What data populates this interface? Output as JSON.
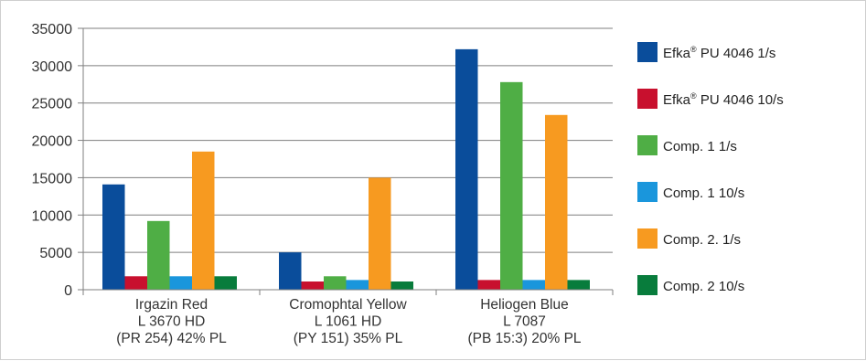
{
  "chart_data": {
    "type": "bar",
    "categories": [
      [
        "Irgazin Red",
        "L 3670 HD",
        "(PR 254) 42% PL"
      ],
      [
        "Cromophtal Yellow",
        "L 1061 HD",
        "(PY 151) 35% PL"
      ],
      [
        "Heliogen Blue",
        "L 7087",
        "(PB 15:3) 20% PL"
      ]
    ],
    "ylim": [
      0,
      35000
    ],
    "yticks": [
      "0",
      "5000",
      "10000",
      "15000",
      "20000",
      "25000",
      "30000",
      "35000"
    ],
    "grid": true,
    "legend_position": "right",
    "series": [
      {
        "name": "Efka® PU 4046 1/s",
        "name_main": "Efka",
        "name_sup": "®",
        "name_rest": " PU 4046 1/s",
        "color": "#0a4d9b",
        "values": [
          14100,
          5000,
          32200
        ]
      },
      {
        "name": "Efka® PU 4046 10/s",
        "name_main": "Efka",
        "name_sup": "®",
        "name_rest": " PU 4046 10/s",
        "color": "#c8102e",
        "values": [
          1800,
          1100,
          1300
        ]
      },
      {
        "name": "Comp. 1 1/s",
        "name_main": "Comp. 1 1/s",
        "name_sup": "",
        "name_rest": "",
        "color": "#4fae45",
        "values": [
          9200,
          1800,
          27800
        ]
      },
      {
        "name": "Comp. 1 10/s",
        "name_main": "Comp. 1 10/s",
        "name_sup": "",
        "name_rest": "",
        "color": "#1a96dc",
        "values": [
          1800,
          1300,
          1300
        ]
      },
      {
        "name": "Comp. 2. 1/s",
        "name_main": "Comp. 2. 1/s",
        "name_sup": "",
        "name_rest": "",
        "color": "#f79a20",
        "values": [
          18500,
          15000,
          23400
        ]
      },
      {
        "name": "Comp. 2 10/s",
        "name_main": "Comp. 2 10/s",
        "name_sup": "",
        "name_rest": "",
        "color": "#087c3c",
        "values": [
          1800,
          1100,
          1300
        ]
      }
    ]
  }
}
